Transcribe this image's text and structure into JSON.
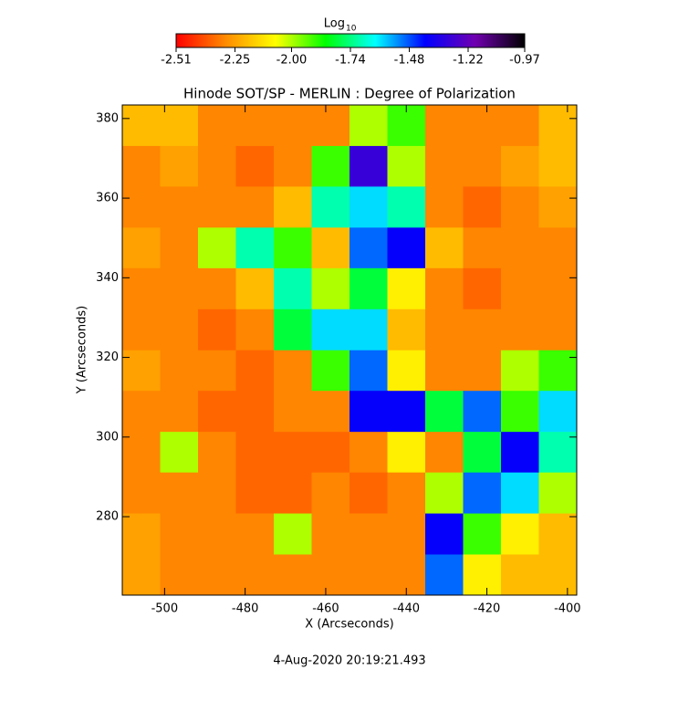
{
  "chart_data": {
    "type": "heatmap",
    "title": "Hinode SOT/SP - MERLIN : Degree of Polarization",
    "x_label": "X (Arcseconds)",
    "y_label": "Y (Arcseconds)",
    "footer": "4-Aug-2020 20:19:21.493",
    "colorbar_label": "Log",
    "colorbar_label_sub": "10",
    "colormap": [
      "#ff0000",
      "#ff8c00",
      "#ffff00",
      "#00ff00",
      "#00ffff",
      "#0000ff",
      "#7000b0",
      "#000000"
    ],
    "zlim": [
      -2.51,
      -0.97
    ],
    "zticks": [
      -2.51,
      -2.25,
      {
        "value": -2,
        "label": "-2.00"
      },
      -1.74,
      -1.48,
      -1.22,
      -0.97
    ],
    "xlim": [
      -510.5,
      -397.7
    ],
    "ylim": [
      260.3,
      383.4
    ],
    "xticks": [
      -500,
      -480,
      -460,
      -440,
      -420,
      -400
    ],
    "yticks": [
      280,
      300,
      320,
      340,
      360,
      380
    ],
    "x": [
      -510.5,
      -501.1,
      -491.7,
      -482.3,
      -472.9,
      -463.5,
      -454.1,
      -444.7,
      -435.3,
      -425.9,
      -416.5,
      -407.1,
      -397.7
    ],
    "y": [
      383.4,
      373.1,
      362.9,
      352.6,
      342.4,
      332.1,
      321.8,
      311.6,
      301.3,
      291.1,
      280.8,
      270.5,
      260.3
    ],
    "values": [
      [
        -2.2,
        -2.2,
        -2.3,
        -2.3,
        -2.3,
        -2.3,
        -2.0,
        -1.9,
        -2.3,
        -2.3,
        -2.3,
        -2.2
      ],
      [
        -2.3,
        -2.25,
        -2.3,
        -2.35,
        -2.3,
        -1.9,
        -1.3,
        -2.0,
        -2.3,
        -2.3,
        -2.25,
        -2.2
      ],
      [
        -2.3,
        -2.3,
        -2.3,
        -2.3,
        -2.2,
        -1.7,
        -1.6,
        -1.7,
        -2.3,
        -2.35,
        -2.3,
        -2.25
      ],
      [
        -2.25,
        -2.3,
        -2.0,
        -1.7,
        -1.9,
        -2.2,
        -1.5,
        -1.4,
        -2.2,
        -2.3,
        -2.3,
        -2.3
      ],
      [
        -2.3,
        -2.3,
        -2.3,
        -2.2,
        -1.7,
        -2.0,
        -1.8,
        -2.1,
        -2.3,
        -2.35,
        -2.3,
        -2.3
      ],
      [
        -2.3,
        -2.3,
        -2.35,
        -2.3,
        -1.8,
        -1.6,
        -1.6,
        -2.2,
        -2.3,
        -2.3,
        -2.3,
        -2.3
      ],
      [
        -2.25,
        -2.3,
        -2.3,
        -2.35,
        -2.3,
        -1.9,
        -1.5,
        -2.1,
        -2.3,
        -2.3,
        -2.0,
        -1.9
      ],
      [
        -2.3,
        -2.3,
        -2.35,
        -2.35,
        -2.3,
        -2.3,
        -1.4,
        -1.4,
        -1.8,
        -1.5,
        -1.9,
        -1.6
      ],
      [
        -2.3,
        -2.0,
        -2.3,
        -2.35,
        -2.35,
        -2.35,
        -2.3,
        -2.1,
        -2.3,
        -1.8,
        -1.4,
        -1.7
      ],
      [
        -2.3,
        -2.3,
        -2.3,
        -2.35,
        -2.35,
        -2.3,
        -2.35,
        -2.3,
        -2.0,
        -1.5,
        -1.6,
        -2.0
      ],
      [
        -2.25,
        -2.3,
        -2.3,
        -2.3,
        -2.0,
        -2.3,
        -2.3,
        -2.3,
        -1.4,
        -1.9,
        -2.1,
        -2.2
      ],
      [
        -2.25,
        -2.3,
        -2.3,
        -2.3,
        -2.3,
        -2.3,
        -2.3,
        -2.3,
        -1.5,
        -2.1,
        -2.2,
        -2.2
      ]
    ]
  }
}
